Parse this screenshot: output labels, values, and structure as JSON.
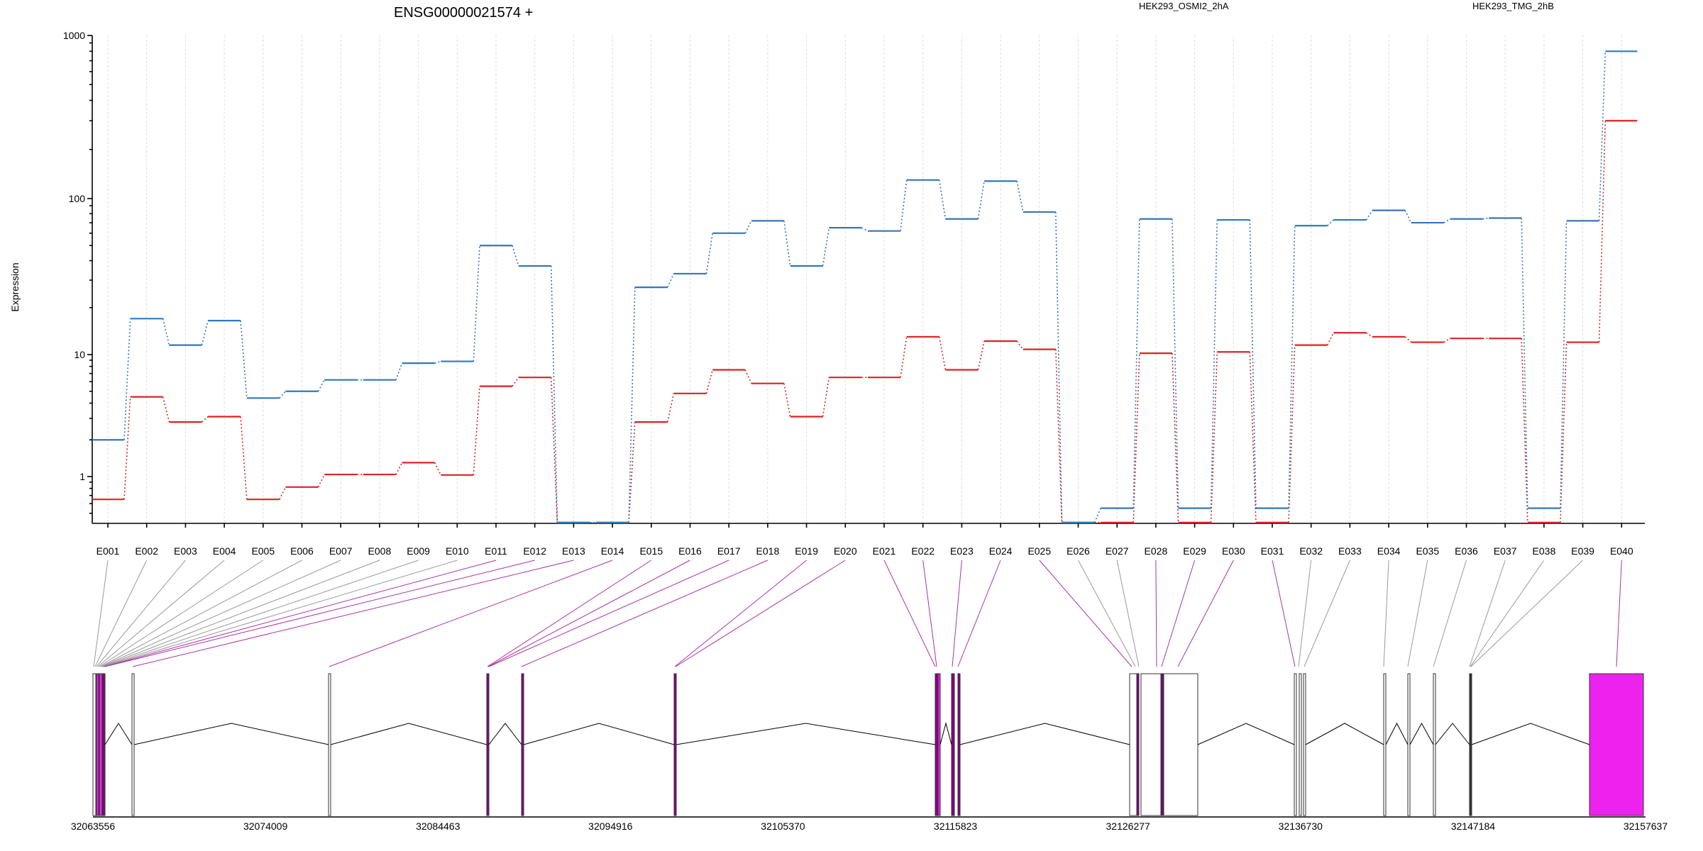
{
  "title": "ENSG00000021574 +",
  "ylabel": "Expression",
  "colors": {
    "line": "#dddddd",
    "exon_plain": "#ffffff",
    "exon_highlight": "#ee22ee",
    "exon_dark": "#880088",
    "intron": "#000000",
    "connector_gray": "#999999",
    "connector_purple": "#aa33aa"
  },
  "chart_data": {
    "type": "line",
    "title": "ENSG00000021574 +",
    "xlabel": "",
    "ylabel": "Expression",
    "yscale": "log",
    "ylim": [
      0.35,
      1000
    ],
    "yticks": [
      "1",
      "10",
      "100",
      "1000"
    ],
    "grid": true,
    "legend": "top-right",
    "categories": [
      "E001",
      "E002",
      "E003",
      "E004",
      "E005",
      "E006",
      "E007",
      "E008",
      "E009",
      "E010",
      "E011",
      "E012",
      "E013",
      "E014",
      "E015",
      "E016",
      "E017",
      "E018",
      "E019",
      "E020",
      "E021",
      "E022",
      "E023",
      "E024",
      "E025",
      "E026",
      "E027",
      "E028",
      "E029",
      "E030",
      "E031",
      "E032",
      "E033",
      "E034",
      "E035",
      "E036",
      "E037",
      "E038",
      "E039",
      "E040"
    ],
    "series": [
      {
        "name": "HEK293_OSMI2_2hA",
        "color": "#dd2222",
        "values": [
          0.65,
          4.5,
          2.8,
          3.1,
          0.65,
          0.82,
          1.04,
          1.04,
          1.3,
          1.03,
          5.5,
          6.5,
          0.42,
          0.42,
          2.8,
          4.8,
          7.5,
          5.8,
          3.1,
          6.5,
          6.5,
          13,
          7.5,
          12.2,
          10.8,
          0.42,
          0.42,
          10.2,
          0.42,
          10.4,
          0.42,
          11.5,
          13.8,
          13,
          12,
          12.7,
          12.7,
          0.42,
          12,
          300
        ]
      },
      {
        "name": "HEK293_TMG_2hB",
        "color": "#3377bb",
        "values": [
          2.0,
          17,
          11.5,
          16.5,
          4.4,
          5.0,
          6.2,
          6.2,
          8.5,
          8.8,
          50,
          37,
          0.42,
          0.42,
          27,
          33,
          60,
          72,
          37,
          65,
          62,
          130,
          74,
          128,
          82,
          0.42,
          0.55,
          74,
          0.55,
          73,
          0.55,
          67,
          73,
          84,
          70,
          74,
          75,
          0.55,
          72,
          800
        ]
      }
    ],
    "genomic_axis": {
      "ticks": [
        "32063556",
        "32074009",
        "32084463",
        "32094916",
        "32105370",
        "32115823",
        "32126277",
        "32136730",
        "32147184",
        "32157637"
      ]
    }
  }
}
